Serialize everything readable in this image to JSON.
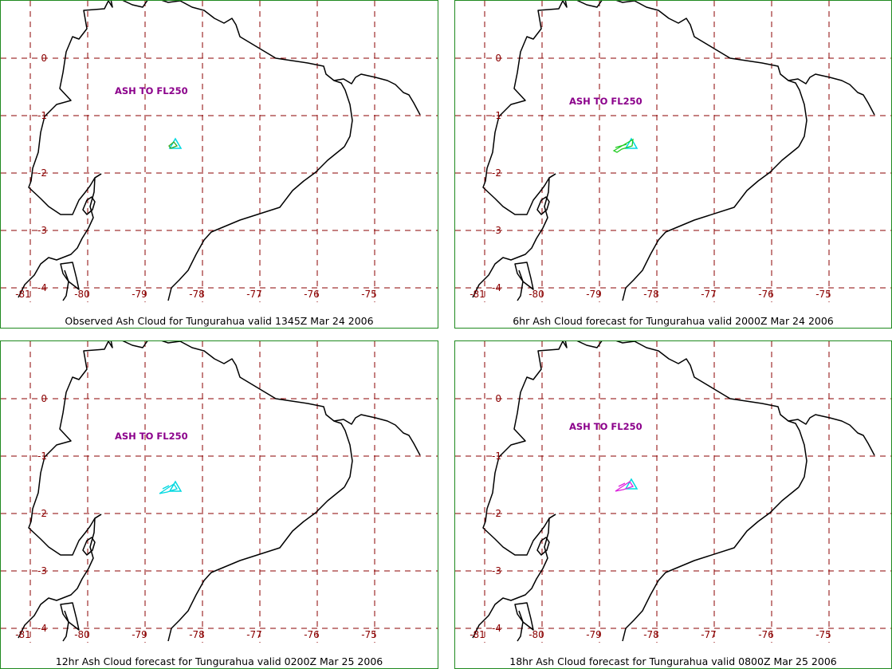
{
  "panels": [
    {
      "caption": "Observed Ash Cloud for Tungurahua valid 1345Z Mar 24 2006",
      "ash_label": "ASH TO FL250",
      "ash_color": "#33aa22",
      "vent_color": "#00d8e0"
    },
    {
      "caption": "6hr Ash Cloud forecast for Tungurahua valid 2000Z Mar 24 2006",
      "ash_label": "ASH TO FL250",
      "ash_color": "#22cc22",
      "vent_color": "#00d8e0"
    },
    {
      "caption": "12hr Ash Cloud forecast for Tungurahua valid 0200Z Mar 25 2006",
      "ash_label": "ASH TO FL250",
      "ash_color": "#00d8e0",
      "vent_color": "#00d8e0"
    },
    {
      "caption": "18hr Ash Cloud forecast for Tungurahua valid 0800Z Mar 25 2006",
      "ash_label": "ASH TO FL250",
      "ash_color": "#dd22dd",
      "vent_color": "#00d8e0"
    }
  ],
  "map": {
    "lat_labels": [
      "0",
      "-1",
      "-2",
      "-3",
      "-4"
    ],
    "lon_labels": [
      "-81",
      "-80",
      "-79",
      "-78",
      "-77",
      "-76",
      "-75"
    ],
    "grid_color": "#8b0000",
    "label_color": "#8b0000",
    "ash_label_color": "#8b008b",
    "coast_color": "#000000",
    "border_color": "#1f8a1f"
  }
}
